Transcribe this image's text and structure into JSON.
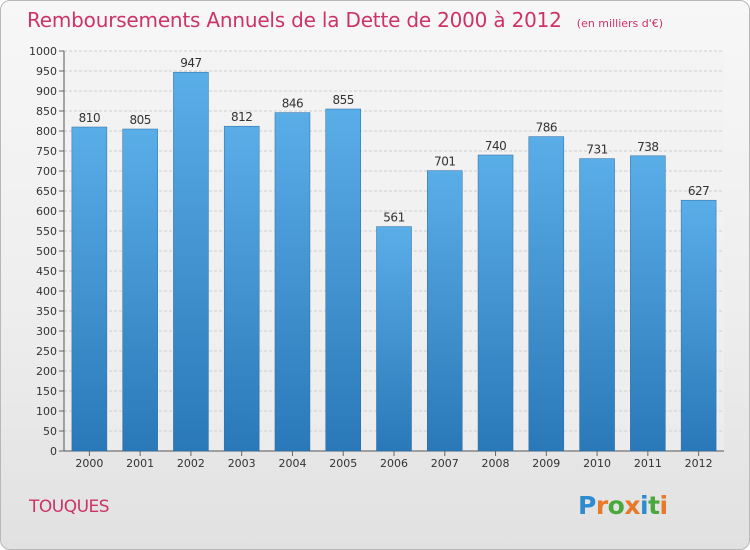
{
  "chart_data": {
    "type": "bar",
    "title": "Remboursements Annuels de la Dette de 2000 à 2012",
    "subtitle": "(en milliers d'€)",
    "categories": [
      "2000",
      "2001",
      "2002",
      "2003",
      "2004",
      "2005",
      "2006",
      "2007",
      "2008",
      "2009",
      "2010",
      "2011",
      "2012"
    ],
    "values": [
      810,
      805,
      947,
      812,
      846,
      855,
      561,
      701,
      740,
      786,
      731,
      738,
      627
    ],
    "ylim": [
      0,
      1000
    ],
    "ytick_step": 50,
    "grid": true,
    "xlabel": "",
    "ylabel": "",
    "bar_color_top": "#5aaee8",
    "bar_color_bottom": "#2a78b8"
  },
  "location": "TOUQUES",
  "logo": {
    "text": "Proxiti",
    "letter_colors": [
      "#2e8bd0",
      "#e8782a",
      "#4aa83c",
      "#e8782a",
      "#2e8bd0",
      "#4aa83c",
      "#e8782a"
    ]
  },
  "colors": {
    "accent": "#cc3366"
  }
}
